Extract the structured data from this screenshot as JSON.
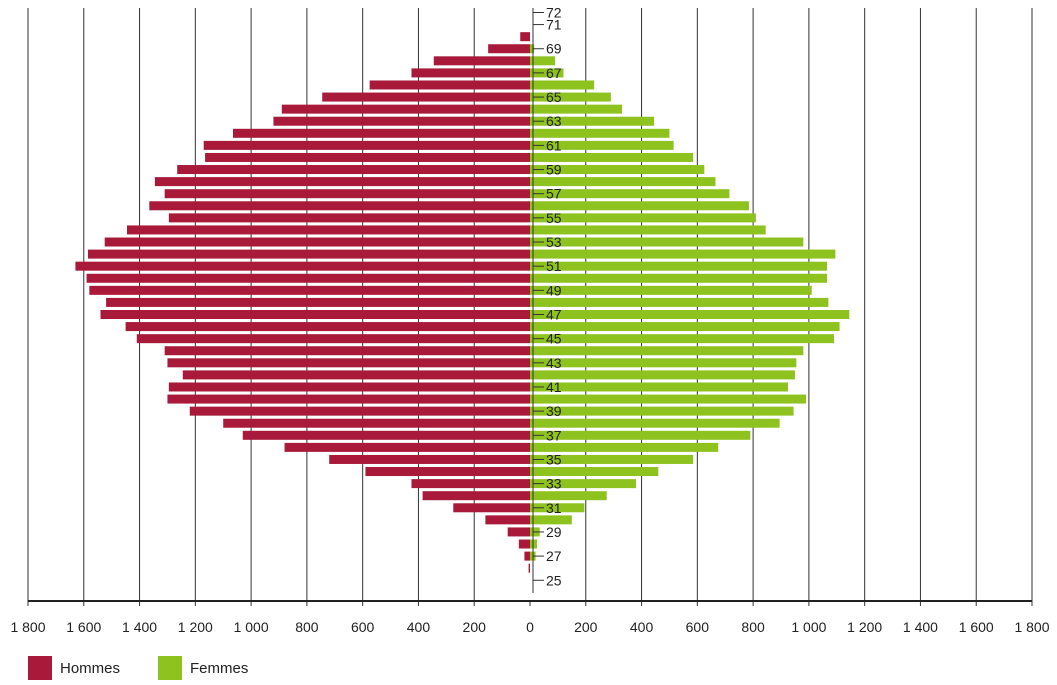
{
  "chart_data": {
    "type": "bar",
    "orientation": "horizontal",
    "layout": "population-pyramid",
    "title": "",
    "xlabel": "",
    "ylabel": "",
    "xlim": [
      -1800,
      1800
    ],
    "x_ticks": [
      -1800,
      -1600,
      -1400,
      -1200,
      -1000,
      -800,
      -600,
      -400,
      -200,
      0,
      200,
      400,
      600,
      800,
      1000,
      1200,
      1400,
      1600,
      1800
    ],
    "x_tick_labels": [
      "1 800",
      "1 600",
      "1 400",
      "1 200",
      "1 000",
      "800",
      "600",
      "400",
      "200",
      "0",
      "200",
      "400",
      "600",
      "800",
      "1 000",
      "1 200",
      "1 400",
      "1 600",
      "1 800"
    ],
    "grid": true,
    "legend_position": "bottom-left",
    "ages": [
      72,
      71,
      70,
      69,
      68,
      67,
      66,
      65,
      64,
      63,
      62,
      61,
      60,
      59,
      58,
      57,
      56,
      55,
      54,
      53,
      52,
      51,
      50,
      49,
      48,
      47,
      46,
      45,
      44,
      43,
      42,
      41,
      40,
      39,
      38,
      37,
      36,
      35,
      34,
      33,
      32,
      31,
      30,
      29,
      28,
      27,
      26,
      25
    ],
    "age_labels": [
      "72",
      "71",
      "69",
      "67",
      "65",
      "63",
      "61",
      "59",
      "57",
      "55",
      "53",
      "51",
      "49",
      "47",
      "45",
      "43",
      "41",
      "39",
      "37",
      "35",
      "33",
      "31",
      "29",
      "27",
      "25"
    ],
    "series": [
      {
        "name": "Hommes",
        "color": "#a8193a",
        "values": [
          0,
          0,
          35,
          150,
          345,
          425,
          575,
          745,
          890,
          920,
          1065,
          1170,
          1165,
          1265,
          1345,
          1310,
          1365,
          1295,
          1445,
          1525,
          1585,
          1630,
          1590,
          1580,
          1520,
          1540,
          1450,
          1410,
          1310,
          1300,
          1245,
          1295,
          1300,
          1220,
          1100,
          1030,
          880,
          720,
          590,
          425,
          385,
          275,
          160,
          80,
          40,
          20,
          5,
          0
        ]
      },
      {
        "name": "Femmes",
        "color": "#8ec21f",
        "values": [
          0,
          0,
          0,
          15,
          90,
          120,
          230,
          290,
          330,
          445,
          500,
          515,
          585,
          625,
          665,
          715,
          785,
          810,
          845,
          980,
          1095,
          1065,
          1065,
          1010,
          1070,
          1145,
          1110,
          1090,
          980,
          955,
          950,
          925,
          990,
          945,
          895,
          790,
          675,
          585,
          460,
          380,
          275,
          195,
          150,
          35,
          25,
          20,
          0,
          0
        ]
      }
    ]
  }
}
